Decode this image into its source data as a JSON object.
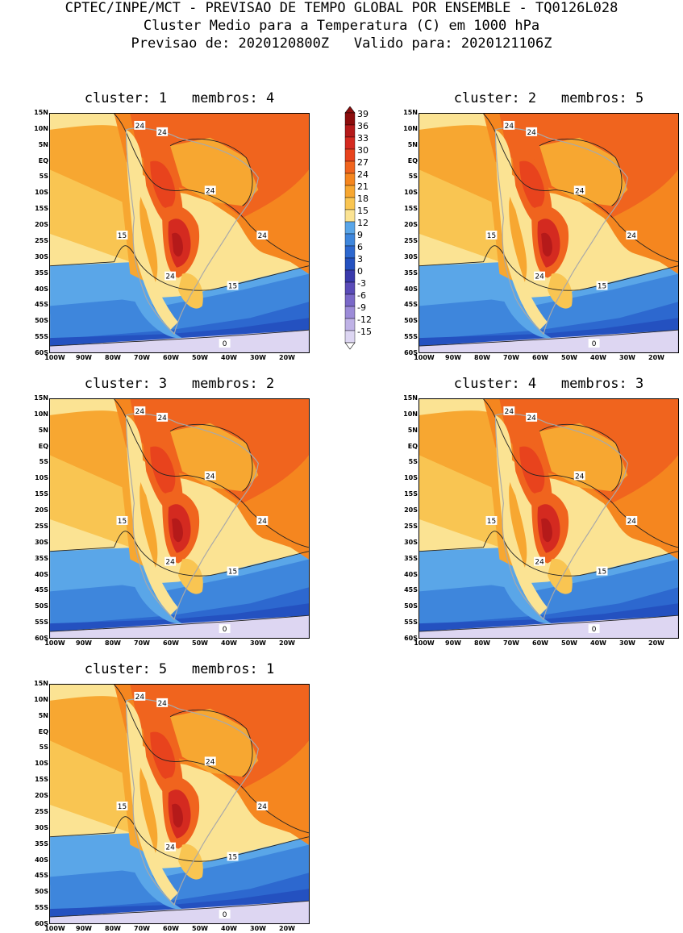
{
  "header": {
    "line1": "CPTEC/INPE/MCT - PREVISAO DE TEMPO GLOBAL POR ENSEMBLE - TQ0126L028",
    "line2": "Cluster Medio para a Temperatura (C) em 1000 hPa",
    "line3": "Previsao de: 2020120800Z   Valido para: 2020121106Z"
  },
  "lat_labels": [
    "15N",
    "10N",
    "5N",
    "EQ",
    "5S",
    "10S",
    "15S",
    "20S",
    "25S",
    "30S",
    "35S",
    "40S",
    "45S",
    "50S",
    "55S",
    "60S"
  ],
  "lon_labels": [
    "100W",
    "90W",
    "80W",
    "70W",
    "60W",
    "50W",
    "40W",
    "30W",
    "20W"
  ],
  "colorbar": {
    "levels": [
      "39",
      "36",
      "33",
      "30",
      "27",
      "24",
      "21",
      "18",
      "15",
      "12",
      "9",
      "6",
      "3",
      "0",
      "-3",
      "-6",
      "-9",
      "-12",
      "-15"
    ],
    "colors": [
      "#8c0d0d",
      "#b51a1a",
      "#d42a20",
      "#e8431d",
      "#f0641e",
      "#f5861f",
      "#f7a731",
      "#f9c552",
      "#fbe393",
      "#5aa6e8",
      "#3e86dc",
      "#2d68cf",
      "#2451c0",
      "#3a3aac",
      "#5a4bb8",
      "#7a68c8",
      "#9c8bd8",
      "#bfb2e6",
      "#ddd6f2"
    ]
  },
  "panels": [
    {
      "title": "cluster: 1   membros: 4",
      "contour_labels": [
        "24",
        "24",
        "24",
        "24",
        "15",
        "24",
        "15",
        "0"
      ]
    },
    {
      "title": "cluster: 2   membros: 5",
      "contour_labels": [
        "24",
        "24",
        "24",
        "24",
        "15",
        "24",
        "15",
        "0"
      ]
    },
    {
      "title": "cluster: 3   membros: 2",
      "contour_labels": [
        "24",
        "24",
        "24",
        "24",
        "15",
        "24",
        "15",
        "0"
      ]
    },
    {
      "title": "cluster: 4   membros: 3",
      "contour_labels": [
        "24",
        "24",
        "24",
        "24",
        "15",
        "24",
        "15",
        "0"
      ]
    },
    {
      "title": "cluster: 5   membros: 1",
      "contour_labels": [
        "24",
        "24",
        "24",
        "24",
        "15",
        "24",
        "15",
        "0"
      ]
    }
  ]
}
